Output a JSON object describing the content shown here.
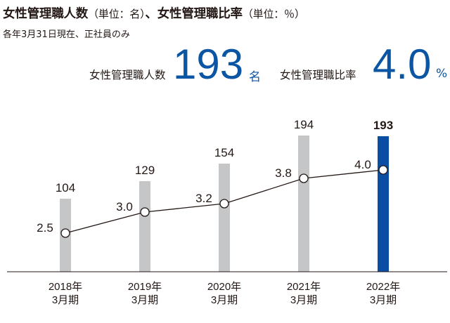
{
  "header": {
    "title_main_1": "女性管理職人数",
    "title_paren_1": "（単位：名）",
    "title_sep": "、",
    "title_main_2": "女性管理職比率",
    "title_paren_2": "（単位：％）",
    "subtitle": "各年3月31日現在、正社員のみ"
  },
  "kpis": {
    "count_label": "女性管理職人数",
    "count_value": "193",
    "count_unit": "名",
    "ratio_label": "女性管理職比率",
    "ratio_value": "4.0",
    "ratio_unit": "%"
  },
  "chart_data": {
    "type": "bar",
    "categories": [
      "2018年\n3月期",
      "2019年\n3月期",
      "2020年\n3月期",
      "2021年\n3月期",
      "2022年\n3月期"
    ],
    "series": [
      {
        "type": "bar",
        "values": [
          104,
          129,
          154,
          194,
          193
        ],
        "labels": [
          "104",
          "129",
          "154",
          "194",
          "193"
        ]
      },
      {
        "type": "line",
        "values": [
          2.5,
          3.0,
          3.2,
          3.8,
          4.0
        ],
        "labels": [
          "2.5",
          "3.0",
          "3.2",
          "3.8",
          "4.0"
        ]
      }
    ],
    "ylim": [
      0,
      200
    ],
    "highlight_index": 4,
    "colors": {
      "bar": "#c5c6c8",
      "bar_highlight": "#0a4da2",
      "line": "#231815",
      "accent": "#0a55a4"
    },
    "legend": "none",
    "grid": false
  }
}
